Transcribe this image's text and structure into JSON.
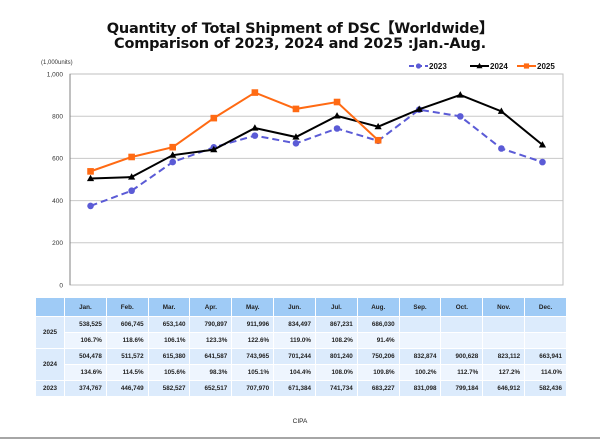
{
  "chart_data": {
    "type": "line",
    "title": "Quantity of Total Shipment of DSC【Worldwide】",
    "subtitle": "Comparison of 2023, 2024 and 2025 :Jan.-Aug.",
    "unit_label": "(1,000units)",
    "xlabel": "",
    "ylabel": "(1,000units)",
    "ylim": [
      0,
      1000
    ],
    "yticks": [
      "0",
      "200",
      "400",
      "600",
      "800",
      "1,000"
    ],
    "ytick_values": [
      0,
      200,
      400,
      600,
      800,
      1000
    ],
    "grid": true,
    "legend_position": "top-right",
    "categories": [
      "Jan.",
      "Feb.",
      "Mar.",
      "Apr.",
      "May.",
      "Jun.",
      "Jul.",
      "Aug.",
      "Sep.",
      "Oct.",
      "Nov.",
      "Dec."
    ],
    "series": [
      {
        "name": "2023",
        "color": "#5b5bd6",
        "style": "dashed",
        "marker": "circle",
        "values": [
          374.767,
          446.749,
          582.527,
          652.517,
          707.97,
          671.384,
          741.734,
          683.227,
          831.098,
          799.184,
          646.912,
          582.436
        ]
      },
      {
        "name": "2024",
        "color": "#000000",
        "style": "solid",
        "marker": "triangle",
        "values": [
          504.478,
          511.572,
          615.38,
          641.587,
          743.965,
          701.244,
          801.24,
          750.206,
          832.874,
          900.628,
          823.112,
          663.941
        ]
      },
      {
        "name": "2025",
        "color": "#ff6a13",
        "style": "solid",
        "marker": "square",
        "values": [
          538.525,
          606.745,
          653.14,
          790.897,
          911.996,
          834.497,
          867.231,
          686.03,
          null,
          null,
          null,
          null
        ]
      }
    ]
  },
  "table": {
    "months": [
      "Jan.",
      "Feb.",
      "Mar.",
      "Apr.",
      "May.",
      "Jun.",
      "Jul.",
      "Aug.",
      "Sep.",
      "Oct.",
      "Nov.",
      "Dec."
    ],
    "rows": [
      {
        "year": "2025",
        "units": [
          "538,525",
          "606,745",
          "653,140",
          "790,897",
          "911,996",
          "834,497",
          "867,231",
          "686,030",
          "",
          "",
          "",
          ""
        ],
        "ratio": [
          "106.7%",
          "118.6%",
          "106.1%",
          "123.3%",
          "122.6%",
          "119.0%",
          "108.2%",
          "91.4%",
          "",
          "",
          "",
          ""
        ]
      },
      {
        "year": "2024",
        "units": [
          "504,478",
          "511,572",
          "615,380",
          "641,587",
          "743,965",
          "701,244",
          "801,240",
          "750,206",
          "832,874",
          "900,628",
          "823,112",
          "663,941"
        ],
        "ratio": [
          "134.6%",
          "114.5%",
          "105.6%",
          "98.3%",
          "105.1%",
          "104.4%",
          "108.0%",
          "109.8%",
          "100.2%",
          "112.7%",
          "127.2%",
          "114.0%"
        ]
      },
      {
        "year": "2023",
        "units": [
          "374,767",
          "446,749",
          "582,527",
          "652,517",
          "707,970",
          "671,384",
          "741,734",
          "683,227",
          "831,098",
          "799,184",
          "646,912",
          "582,436"
        ]
      }
    ]
  },
  "source": "CIPA"
}
